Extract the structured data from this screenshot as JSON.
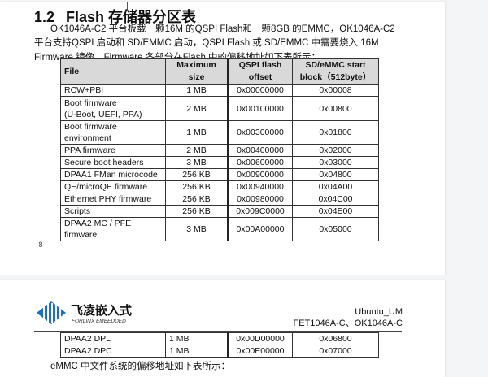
{
  "section": {
    "number": "1.2",
    "title": "Flash 存储器分区表"
  },
  "paragraph": "OK1046A-C2 平台板载一颗16M 的QSPI Flash和一颗8GB 的EMMC，OK1046A-C2 平台支持QSPI 启动和 SD/EMMC 启动，QSPI Flash 或 SD/EMMC 中需要烧入 16M Firmware 镜像，Firmware 各部分在Flash 中的偏移地址如下表所示：",
  "table": {
    "headers": [
      "File",
      "Maximum size",
      "QSPI flash offset",
      "SD/eMMC start block（512byte）"
    ],
    "rows": [
      [
        "RCW+PBI",
        "1 MB",
        "0x00000000",
        "0x00008"
      ],
      [
        "Boot firmware\n(U-Boot, UEFI, PPA)",
        "2 MB",
        "0x00100000",
        "0x00800"
      ],
      [
        "Boot firmware environment",
        "1 MB",
        "0x00300000",
        "0x01800"
      ],
      [
        "PPA firmware",
        "2 MB",
        "0x00400000",
        "0x02000"
      ],
      [
        "Secure boot headers",
        "3 MB",
        "0x00600000",
        "0x03000"
      ],
      [
        "DPAA1 FMan microcode",
        "256 KB",
        "0x00900000",
        "0x04800"
      ],
      [
        "QE/microQE firmware",
        "256 KB",
        "0x00940000",
        "0x04A00"
      ],
      [
        "Ethernet PHY firmware",
        "256 KB",
        "0x00980000",
        "0x04C00"
      ],
      [
        "Scripts",
        "256 KB",
        "0x009C0000",
        "0x04E00"
      ],
      [
        "DPAA2 MC / PFE firmware",
        "3 MB",
        "0x00A00000",
        "0x05000"
      ]
    ]
  },
  "page_number": "- 8 -",
  "header": {
    "logo_cn": "飞凌嵌入式",
    "logo_en": "FORLINX EMBEDDED",
    "doc_name": "Ubuntu_UM",
    "models": "FET1046A-C、OK1046A-C",
    "brand_color": "#1a6fc4"
  },
  "table2": {
    "rows": [
      [
        "DPAA2 DPL",
        "1 MB",
        "0x00D00000",
        "0x06800"
      ],
      [
        "DPAA2 DPC",
        "1 MB",
        "0x00E00000",
        "0x07000"
      ]
    ]
  },
  "after_text": "eMMC 中文件系统的偏移地址如下表所示："
}
